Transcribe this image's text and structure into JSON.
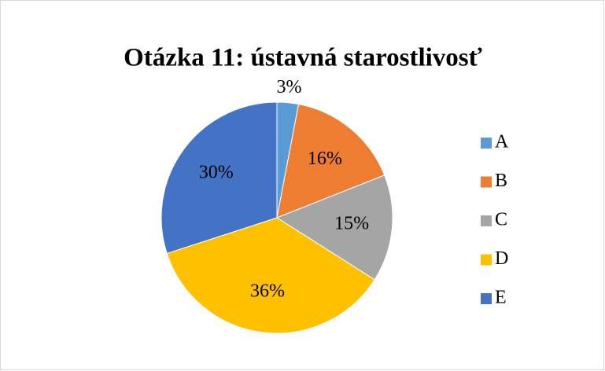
{
  "chart_data": {
    "type": "pie",
    "title": "Otázka 11: ústavná starostlivosť",
    "categories": [
      "A",
      "B",
      "C",
      "D",
      "E"
    ],
    "values": [
      3,
      16,
      15,
      36,
      30
    ],
    "value_labels": [
      "3%",
      "16%",
      "15%",
      "36%",
      "30%"
    ],
    "colors": [
      "#5b9bd5",
      "#ed7d31",
      "#a5a5a5",
      "#ffc000",
      "#4472c4"
    ],
    "legend": "right"
  }
}
